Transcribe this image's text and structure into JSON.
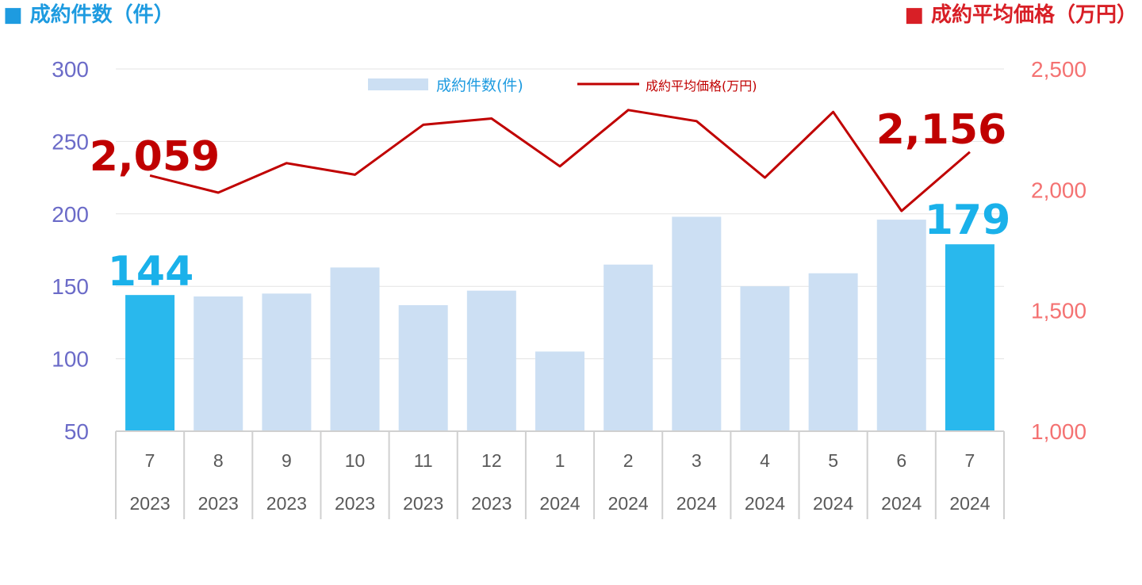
{
  "header": {
    "left_marker": "■",
    "left_title": "成約件数（件）",
    "right_marker": "■",
    "right_title": "成約平均価格（万円）"
  },
  "chart_data": {
    "type": "bar+line",
    "categories": [
      {
        "month": "7",
        "year": "2023"
      },
      {
        "month": "8",
        "year": "2023"
      },
      {
        "month": "9",
        "year": "2023"
      },
      {
        "month": "10",
        "year": "2023"
      },
      {
        "month": "11",
        "year": "2023"
      },
      {
        "month": "12",
        "year": "2023"
      },
      {
        "month": "1",
        "year": "2024"
      },
      {
        "month": "2",
        "year": "2024"
      },
      {
        "month": "3",
        "year": "2024"
      },
      {
        "month": "4",
        "year": "2024"
      },
      {
        "month": "5",
        "year": "2024"
      },
      {
        "month": "6",
        "year": "2024"
      },
      {
        "month": "7",
        "year": "2024"
      }
    ],
    "bar_series": {
      "name": "成約件数(件)",
      "axis": "left",
      "values": [
        144,
        143,
        145,
        163,
        137,
        147,
        105,
        165,
        198,
        150,
        159,
        196,
        179
      ],
      "color": "#ccdff3",
      "highlight_color": "#29b8ed",
      "highlight_indices": [
        0,
        12
      ]
    },
    "line_series": {
      "name": "成約平均価格(万円)",
      "axis": "right",
      "values": [
        2059,
        1988,
        2110,
        2062,
        2269,
        2295,
        2097,
        2330,
        2284,
        2050,
        2322,
        1912,
        2156
      ],
      "color": "#c00000"
    },
    "left_axis": {
      "min": 50,
      "max": 300,
      "ticks": [
        "50",
        "100",
        "150",
        "200",
        "250",
        "300"
      ],
      "color": "#6b6bc8"
    },
    "right_axis": {
      "min": 1000,
      "max": 2500,
      "ticks": [
        "1,000",
        "1,500",
        "2,000",
        "2,500"
      ],
      "color": "#f47272"
    },
    "legend": {
      "bar_label": "成約件数(件)",
      "line_label": "成約平均価格(万円)",
      "position": "top"
    },
    "annotations": {
      "bar_first": "144",
      "bar_last": "179",
      "line_first": "2,059",
      "line_last": "2,156"
    },
    "grid": true
  }
}
